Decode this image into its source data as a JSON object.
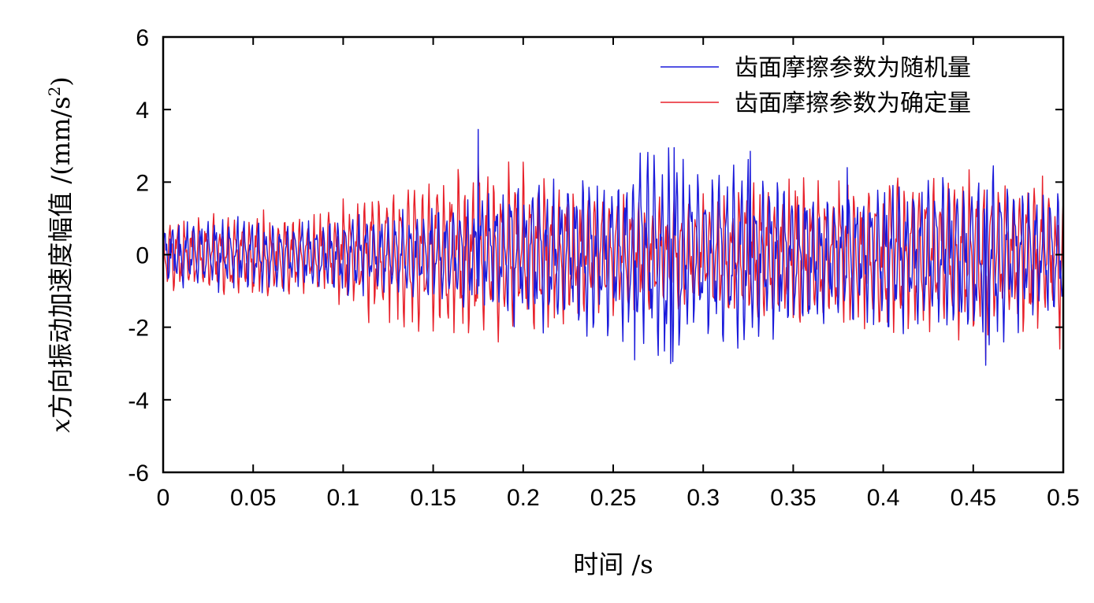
{
  "chart_data": {
    "type": "line",
    "xlabel": "时间 /s",
    "ylabel": "x方向振动加速度幅值 /(mm/s²)",
    "ylabel_parts": {
      "var": "x",
      "text": "方向振动加速度幅值 /(mm/s",
      "sup": "2",
      "close": ")"
    },
    "xlim": [
      0,
      0.5
    ],
    "ylim": [
      -6,
      6
    ],
    "x_ticks": [
      0,
      0.05,
      0.1,
      0.15,
      0.2,
      0.25,
      0.3,
      0.35,
      0.4,
      0.45,
      0.5
    ],
    "x_tick_labels": [
      "0",
      "0.05",
      "0.1",
      "0.15",
      "0.2",
      "0.25",
      "0.3",
      "0.35",
      "0.4",
      "0.45",
      "0.5"
    ],
    "y_ticks": [
      6,
      4,
      2,
      0,
      -2,
      -4,
      -6
    ],
    "y_tick_labels": [
      "6",
      "4",
      "2",
      "0",
      "-2",
      "-4",
      "-6"
    ],
    "grid": false,
    "legend_position": "top-right",
    "series": [
      {
        "name": "齿面摩擦参数为随机量",
        "color": "#1a1adb",
        "envelope": {
          "t": [
            0,
            0.02,
            0.04,
            0.06,
            0.08,
            0.1,
            0.12,
            0.15,
            0.175,
            0.2,
            0.22,
            0.25,
            0.28,
            0.3,
            0.325,
            0.35,
            0.375,
            0.4,
            0.43,
            0.46,
            0.48,
            0.5
          ],
          "amp": [
            0.9,
            1.0,
            1.0,
            1.0,
            0.9,
            1.2,
            1.1,
            1.3,
            1.6,
            2.0,
            2.1,
            2.3,
            2.9,
            2.3,
            2.5,
            2.0,
            1.8,
            2.0,
            2.2,
            2.5,
            1.9,
            1.8
          ]
        },
        "peaks": [
          [
            0.175,
            3.45
          ],
          [
            0.265,
            2.8
          ],
          [
            0.284,
            2.95
          ],
          [
            0.326,
            2.85
          ],
          [
            0.262,
            -2.9
          ],
          [
            0.282,
            -3.0
          ],
          [
            0.457,
            -3.05
          ],
          [
            0.38,
            2.4
          ]
        ]
      },
      {
        "name": "齿面摩擦参数为确定量",
        "color": "#e8202a",
        "envelope": {
          "t": [
            0,
            0.02,
            0.04,
            0.06,
            0.08,
            0.1,
            0.12,
            0.15,
            0.175,
            0.2,
            0.22,
            0.25,
            0.28,
            0.3,
            0.325,
            0.35,
            0.375,
            0.4,
            0.43,
            0.46,
            0.48,
            0.5
          ],
          "amp": [
            1.0,
            1.1,
            1.1,
            1.2,
            1.0,
            1.5,
            1.9,
            2.2,
            2.5,
            2.4,
            2.0,
            1.6,
            1.5,
            1.6,
            1.9,
            2.0,
            2.1,
            2.2,
            2.2,
            2.3,
            2.2,
            1.9
          ]
        },
        "peaks": [
          [
            0.175,
            2.6
          ],
          [
            0.2,
            2.55
          ],
          [
            0.457,
            -2.9
          ],
          [
            0.498,
            -2.6
          ]
        ]
      }
    ]
  }
}
